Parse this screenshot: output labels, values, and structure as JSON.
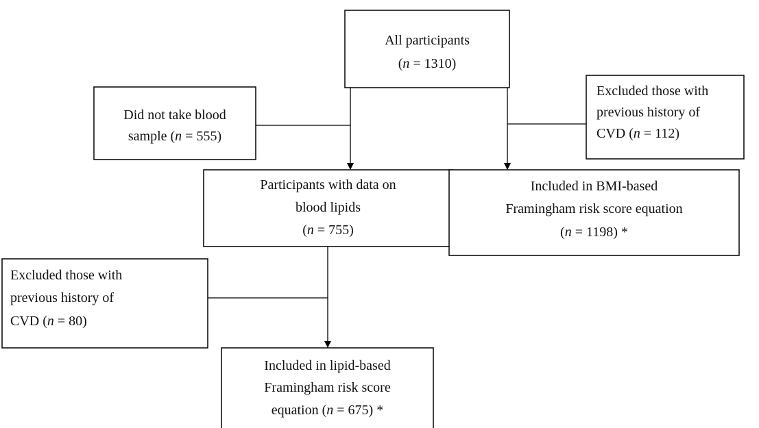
{
  "nodes": [
    {
      "lines": [
        [
          {
            "t": "All participants"
          }
        ],
        [
          {
            "t": "("
          },
          {
            "t": "n",
            "i": true
          },
          {
            "t": " = 1310)"
          }
        ]
      ]
    },
    {
      "lines": [
        [
          {
            "t": "Did not take blood"
          }
        ],
        [
          {
            "t": "sample ("
          },
          {
            "t": "n",
            "i": true
          },
          {
            "t": " = 555)"
          }
        ]
      ]
    },
    {
      "lines": [
        [
          {
            "t": "Excluded those with"
          }
        ],
        [
          {
            "t": "previous history of"
          }
        ],
        [
          {
            "t": "CVD ("
          },
          {
            "t": "n",
            "i": true
          },
          {
            "t": " = 112)"
          }
        ]
      ]
    },
    {
      "lines": [
        [
          {
            "t": "Participants with data on"
          }
        ],
        [
          {
            "t": "blood lipids"
          }
        ],
        [
          {
            "t": "("
          },
          {
            "t": "n",
            "i": true
          },
          {
            "t": " = 755)"
          }
        ]
      ]
    },
    {
      "lines": [
        [
          {
            "t": "Included in BMI-based"
          }
        ],
        [
          {
            "t": "Framingham risk score equation"
          }
        ],
        [
          {
            "t": "("
          },
          {
            "t": "n",
            "i": true
          },
          {
            "t": " = 1198) *"
          }
        ]
      ]
    },
    {
      "lines": [
        [
          {
            "t": "Excluded those with"
          }
        ],
        [
          {
            "t": "previous history of"
          }
        ],
        [
          {
            "t": "CVD ("
          },
          {
            "t": "n",
            "i": true
          },
          {
            "t": " = 80)"
          }
        ]
      ]
    },
    {
      "lines": [
        [
          {
            "t": "Included in lipid-based"
          }
        ],
        [
          {
            "t": "Framingham risk score"
          }
        ],
        [
          {
            "t": "equation ("
          },
          {
            "t": "n",
            "i": true
          },
          {
            "t": " = 675) *"
          }
        ]
      ]
    }
  ]
}
